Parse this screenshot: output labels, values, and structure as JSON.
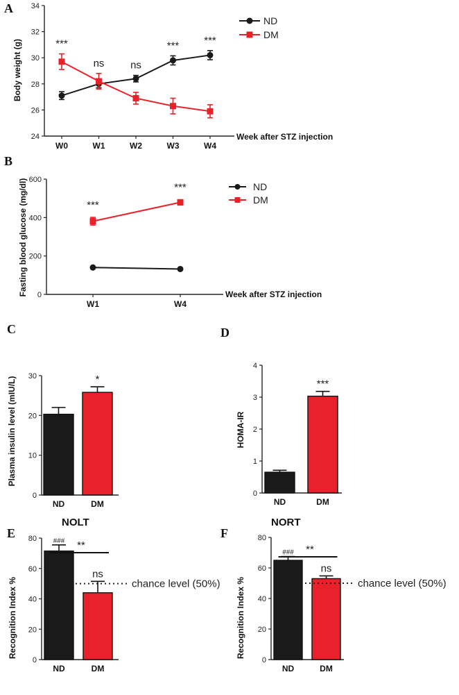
{
  "colors": {
    "nd": "#1a1a1a",
    "dm": "#e8212a",
    "axis": "#222222"
  },
  "chart_data": [
    {
      "panel": "A",
      "type": "line",
      "categories": [
        "W0",
        "W1",
        "W2",
        "W3",
        "W4"
      ],
      "series": [
        {
          "name": "ND",
          "color": "#1a1a1a",
          "marker": "circle",
          "values": [
            27.1,
            28.0,
            28.4,
            29.8,
            30.2
          ],
          "errors": [
            0.3,
            0.3,
            0.25,
            0.35,
            0.35
          ]
        },
        {
          "name": "DM",
          "color": "#e8212a",
          "marker": "square",
          "values": [
            29.7,
            28.2,
            26.9,
            26.3,
            25.9
          ],
          "errors": [
            0.6,
            0.6,
            0.45,
            0.6,
            0.5
          ]
        }
      ],
      "significance": [
        "***",
        "ns",
        "ns",
        "***",
        "***"
      ],
      "ylabel": "Body weight (g)",
      "xlabel": "Week after STZ injection",
      "ylim": [
        24,
        34
      ],
      "yticks": [
        24,
        26,
        28,
        30,
        32,
        34
      ]
    },
    {
      "panel": "B",
      "type": "line",
      "categories": [
        "W1",
        "W4"
      ],
      "series": [
        {
          "name": "ND",
          "color": "#1a1a1a",
          "marker": "circle",
          "values": [
            140,
            132
          ],
          "errors": [
            4,
            4
          ]
        },
        {
          "name": "DM",
          "color": "#e8212a",
          "marker": "square",
          "values": [
            381,
            479
          ],
          "errors": [
            20,
            14
          ]
        }
      ],
      "significance": [
        "***",
        "***"
      ],
      "ylabel": "Fasting blood glucose (mg/dl)",
      "xlabel": "Week after STZ injection",
      "ylim": [
        0,
        600
      ],
      "yticks": [
        0,
        200,
        400,
        600
      ]
    },
    {
      "panel": "C",
      "type": "bar",
      "categories": [
        "ND",
        "DM"
      ],
      "values": [
        20.3,
        25.8
      ],
      "errors": [
        1.7,
        1.4
      ],
      "colors": [
        "#1a1a1a",
        "#e8212a"
      ],
      "significance": [
        "",
        "*"
      ],
      "ylabel": "Plasma insulin level (mIU/L)",
      "ylim": [
        0,
        30
      ],
      "yticks": [
        0,
        10,
        20,
        30
      ]
    },
    {
      "panel": "D",
      "type": "bar",
      "categories": [
        "ND",
        "DM"
      ],
      "values": [
        0.65,
        3.03
      ],
      "errors": [
        0.06,
        0.15
      ],
      "colors": [
        "#1a1a1a",
        "#e8212a"
      ],
      "significance": [
        "",
        "***"
      ],
      "ylabel": "HOMA-IR",
      "ylim": [
        0,
        4
      ],
      "yticks": [
        0,
        1,
        2,
        3,
        4
      ]
    },
    {
      "panel": "E",
      "type": "bar",
      "title": "NOLT",
      "categories": [
        "ND",
        "DM"
      ],
      "values": [
        71.5,
        44.0
      ],
      "errors": [
        4.0,
        7.5
      ],
      "colors": [
        "#1a1a1a",
        "#e8212a"
      ],
      "significance": [
        "###",
        "ns"
      ],
      "bracket": "**",
      "reference_line": {
        "value": 50,
        "label": "chance level (50%)"
      },
      "ylabel": "Recognition Index %",
      "ylim": [
        0,
        80
      ],
      "yticks": [
        0,
        20,
        40,
        60,
        80
      ]
    },
    {
      "panel": "F",
      "type": "bar",
      "title": "NORT",
      "categories": [
        "ND",
        "DM"
      ],
      "values": [
        65.0,
        53.0
      ],
      "errors": [
        2.5,
        1.8
      ],
      "colors": [
        "#1a1a1a",
        "#e8212a"
      ],
      "significance": [
        "###",
        "ns"
      ],
      "bracket": "**",
      "reference_line": {
        "value": 50,
        "label": "chance level (50%)"
      },
      "ylabel": "Recognition Index %",
      "ylim": [
        0,
        80
      ],
      "yticks": [
        0,
        20,
        40,
        60,
        80
      ]
    }
  ]
}
